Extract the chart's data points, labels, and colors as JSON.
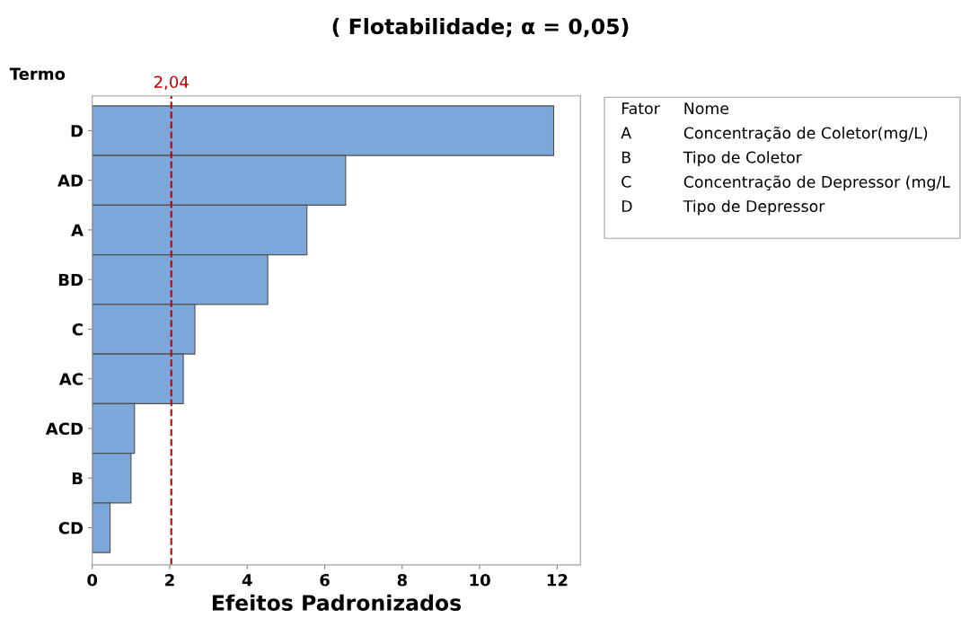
{
  "chart_data": {
    "type": "bar",
    "orientation": "horizontal",
    "title": "( Flotabilidade; α = 0,05)",
    "xlabel": "Efeitos Padronizados",
    "ylabel": "Termo",
    "categories": [
      "D",
      "AD",
      "A",
      "BD",
      "C",
      "AC",
      "ACD",
      "B",
      "CD"
    ],
    "values": [
      11.91,
      6.54,
      5.54,
      4.53,
      2.65,
      2.35,
      1.09,
      1.0,
      0.46
    ],
    "color": "#7ba7da",
    "xlim": [
      0,
      12.6
    ],
    "xticks": [
      0,
      2,
      4,
      6,
      8,
      10,
      12
    ],
    "grid": false,
    "legend": false,
    "ref_lines": [
      {
        "axis": "x",
        "value": 2.04,
        "label": "2,04",
        "color": "#c00000",
        "line_style": "dashed"
      }
    ],
    "annotations": [
      "Fator",
      "Nome",
      "A",
      "Concentração de Coletor(mg/L)",
      "B",
      "Tipo de Coletor",
      "C",
      "Concentração de Depressor (mg/L",
      "D",
      "Tipo de Depressor"
    ]
  }
}
